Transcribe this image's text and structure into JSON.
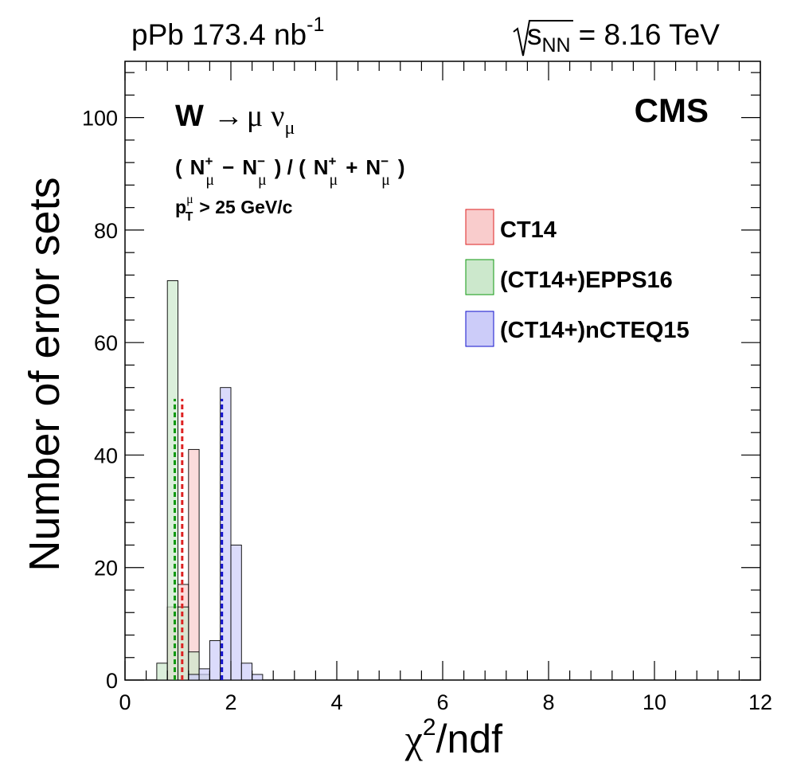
{
  "header": {
    "lumi_text": "pPb 173.4 nb",
    "lumi_exp": "-1",
    "energy_sub": "NN",
    "energy_text": "= 8.16 TeV"
  },
  "annotations": {
    "cms": "CMS",
    "process_w": "W",
    "process_mu": "μ",
    "process_nu": "ν",
    "process_nu_sub": "μ",
    "asym_open": "(",
    "asym_n": "N",
    "asym_plus": "+",
    "asym_minus": "−",
    "asym_mu": "μ",
    "asym_mid": ") / (",
    "asym_close": ")",
    "pt_p": "p",
    "pt_sup": "μ",
    "pt_sub": "T",
    "pt_text": "> 25 GeV/c"
  },
  "chart_data": {
    "type": "bar",
    "xlabel": "χ²/ndf",
    "xlabel_main": "χ",
    "xlabel_sup": "2",
    "xlabel_rest": "/ndf",
    "ylabel": "Number of error sets",
    "xlim": [
      0,
      12
    ],
    "ylim": [
      0,
      110
    ],
    "bin_width": 0.2,
    "x_ticks": [
      "0",
      "2",
      "4",
      "6",
      "8",
      "10",
      "12"
    ],
    "y_ticks": [
      "0",
      "20",
      "40",
      "60",
      "80",
      "100"
    ],
    "legend_position": "top-right",
    "series": [
      {
        "name": "CT14",
        "fill": "#f9cccc",
        "line_color": "#dd2222",
        "bins": [
          [
            0.8,
            13
          ],
          [
            1.0,
            17
          ],
          [
            1.2,
            41
          ],
          [
            1.4,
            1
          ]
        ],
        "mean_line": {
          "x": 1.08,
          "height": 50
        }
      },
      {
        "name": "(CT14+)EPPS16",
        "fill": "#cce8cc",
        "line_color": "#119911",
        "bins": [
          [
            0.6,
            3
          ],
          [
            0.8,
            71
          ],
          [
            1.0,
            13
          ],
          [
            1.2,
            5
          ],
          [
            1.4,
            1
          ]
        ],
        "mean_line": {
          "x": 0.94,
          "height": 50
        }
      },
      {
        "name": "(CT14+)nCTEQ15",
        "fill": "#ccccf9",
        "line_color": "#1111cc",
        "bins": [
          [
            1.2,
            1
          ],
          [
            1.4,
            2
          ],
          [
            1.6,
            7
          ],
          [
            1.8,
            52
          ],
          [
            2.0,
            24
          ],
          [
            2.2,
            3
          ],
          [
            2.4,
            1
          ]
        ],
        "mean_line": {
          "x": 1.83,
          "height": 50
        }
      }
    ]
  }
}
